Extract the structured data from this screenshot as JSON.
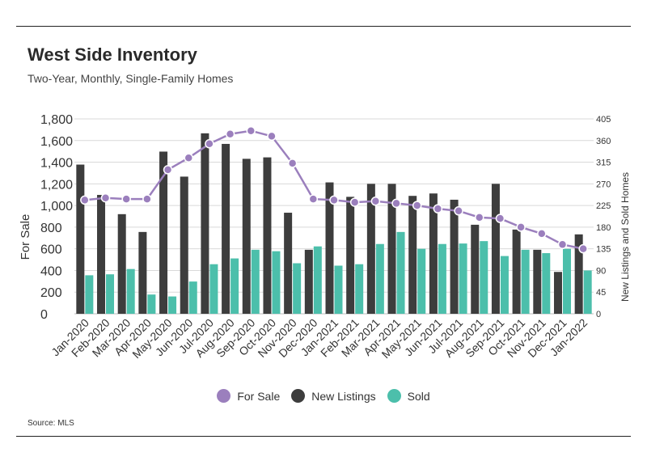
{
  "title": "West Side Inventory",
  "subtitle": "Two-Year, Monthly, Single-Family Homes",
  "source": "Source:  MLS",
  "colors": {
    "for_sale": "#9b7fbd",
    "new_listings": "#3d3d3d",
    "sold": "#4cbfab",
    "grid": "#d9d9d9"
  },
  "chart_data": {
    "type": "bar",
    "categories": [
      "Jan-2020",
      "Feb-2020",
      "Mar-2020",
      "Apr-2020",
      "May-2020",
      "Jun-2020",
      "Jul-2020",
      "Aug-2020",
      "Sep-2020",
      "Oct-2020",
      "Nov-2020",
      "Dec-2020",
      "Jan-2021",
      "Feb-2021",
      "Mar-2021",
      "Apr-2021",
      "May-2021",
      "Jun-2021",
      "Jul-2021",
      "Aug-2021",
      "Sep-2021",
      "Oct-2021",
      "Nov-2021",
      "Dec-2021",
      "Jan-2022"
    ],
    "ylabel": "For Sale",
    "y2label": "New Listings and Sold Homes",
    "ylim": [
      0,
      1800
    ],
    "y2lim": [
      0,
      405
    ],
    "yticks": [
      "0",
      "200",
      "400",
      "600",
      "800",
      "1,000",
      "1,200",
      "1,400",
      "1,600",
      "1,800"
    ],
    "y2ticks": [
      "0",
      "45",
      "90",
      "135",
      "180",
      "225",
      "270",
      "315",
      "360",
      "405"
    ],
    "series": [
      {
        "name": "For Sale",
        "type": "line",
        "axis": "left",
        "values": [
          1050,
          1070,
          1060,
          1060,
          1330,
          1440,
          1570,
          1660,
          1690,
          1640,
          1390,
          1060,
          1050,
          1030,
          1040,
          1020,
          1000,
          970,
          950,
          890,
          880,
          800,
          740,
          640,
          600
        ]
      },
      {
        "name": "New Listings",
        "type": "bar",
        "axis": "right",
        "values": [
          310,
          247,
          207,
          170,
          337,
          285,
          375,
          353,
          322,
          325,
          210,
          133,
          273,
          243,
          270,
          270,
          245,
          250,
          237,
          185,
          270,
          175,
          133,
          87,
          165
        ]
      },
      {
        "name": "Sold",
        "type": "bar",
        "axis": "right",
        "values": [
          80,
          82,
          93,
          40,
          36,
          67,
          103,
          115,
          133,
          130,
          105,
          140,
          100,
          103,
          145,
          170,
          135,
          145,
          146,
          151,
          120,
          133,
          126,
          135,
          90
        ]
      }
    ],
    "grid": true,
    "legend": "bottom-center"
  }
}
